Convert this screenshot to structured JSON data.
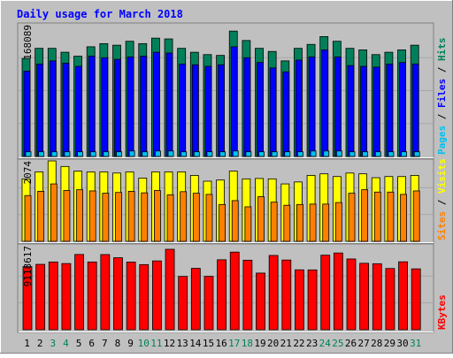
{
  "title": "Daily usage for March 2018",
  "colors": {
    "background": "#c0c0c0",
    "title": "#0000ff",
    "hits": "#00805a",
    "files": "#0000ff",
    "pages": "#00c0f0",
    "visits": "#ffff00",
    "sites": "#ff8000",
    "kbytes": "#ff0000",
    "weekend_label": "#00805a",
    "weekday_label": "#000000"
  },
  "chart_data": [
    {
      "type": "bar",
      "panel": "hits-files-pages",
      "categories": [
        "1",
        "2",
        "3",
        "4",
        "5",
        "6",
        "7",
        "8",
        "9",
        "10",
        "11",
        "12",
        "13",
        "14",
        "15",
        "16",
        "17",
        "18",
        "19",
        "20",
        "21",
        "22",
        "23",
        "24",
        "25",
        "26",
        "27",
        "28",
        "29",
        "30",
        "31"
      ],
      "ymax_label": "168089",
      "ylim": [
        0,
        168089
      ],
      "legend": [
        "Pages",
        "Files",
        "Hits"
      ],
      "series": [
        {
          "name": "Hits",
          "values": [
            125000,
            138000,
            138000,
            133000,
            128000,
            140000,
            144000,
            142000,
            147000,
            144000,
            151000,
            150000,
            138000,
            133000,
            130000,
            129000,
            160000,
            148000,
            138000,
            134000,
            122000,
            138000,
            143000,
            153000,
            147000,
            138000,
            136000,
            130000,
            133000,
            136000,
            142000
          ]
        },
        {
          "name": "Files",
          "values": [
            109000,
            118000,
            122000,
            119000,
            115000,
            128000,
            126000,
            124000,
            127000,
            128000,
            133000,
            132000,
            118000,
            117000,
            115000,
            117000,
            140000,
            126000,
            120000,
            113000,
            108000,
            123000,
            127000,
            136000,
            127000,
            116000,
            115000,
            114000,
            118000,
            120000,
            118000
          ]
        },
        {
          "name": "Pages",
          "values": [
            6000,
            6000,
            6000,
            6000,
            6000,
            6000,
            6000,
            6000,
            7000,
            6000,
            7000,
            7000,
            6000,
            6000,
            6000,
            6000,
            7000,
            6000,
            6000,
            6000,
            6000,
            6000,
            7000,
            7000,
            7000,
            6000,
            6000,
            6000,
            6000,
            6000,
            6000
          ]
        }
      ]
    },
    {
      "type": "bar",
      "panel": "visits-sites",
      "categories": [
        "1",
        "2",
        "3",
        "4",
        "5",
        "6",
        "7",
        "8",
        "9",
        "10",
        "11",
        "12",
        "13",
        "14",
        "15",
        "16",
        "17",
        "18",
        "19",
        "20",
        "21",
        "22",
        "23",
        "24",
        "25",
        "26",
        "27",
        "28",
        "29",
        "30",
        "31"
      ],
      "ymax_label": "2074",
      "ylim": [
        0,
        2074
      ],
      "legend": [
        "Sites",
        "Visits"
      ],
      "series": [
        {
          "name": "Visits",
          "values": [
            1610,
            1790,
            2074,
            1930,
            1810,
            1790,
            1790,
            1760,
            1790,
            1630,
            1790,
            1790,
            1790,
            1700,
            1550,
            1580,
            1810,
            1610,
            1620,
            1610,
            1480,
            1530,
            1700,
            1740,
            1670,
            1760,
            1740,
            1640,
            1670,
            1670,
            1700
          ]
        },
        {
          "name": "Sites",
          "values": [
            1180,
            1290,
            1480,
            1310,
            1330,
            1300,
            1240,
            1260,
            1290,
            1250,
            1310,
            1200,
            1280,
            1240,
            1210,
            950,
            1050,
            890,
            1150,
            1010,
            930,
            950,
            960,
            960,
            1000,
            1240,
            1330,
            1270,
            1270,
            1210,
            1300
          ]
        }
      ]
    },
    {
      "type": "bar",
      "panel": "kbytes",
      "categories": [
        "1",
        "2",
        "3",
        "4",
        "5",
        "6",
        "7",
        "8",
        "9",
        "10",
        "11",
        "12",
        "13",
        "14",
        "15",
        "16",
        "17",
        "18",
        "19",
        "20",
        "21",
        "22",
        "23",
        "24",
        "25",
        "26",
        "27",
        "28",
        "29",
        "30",
        "31"
      ],
      "ymax_label": "9118617",
      "ylim": [
        0,
        9118617
      ],
      "legend": [
        "KBytes"
      ],
      "series": [
        {
          "name": "KBytes",
          "values": [
            7150000,
            7410000,
            7680000,
            7500000,
            8530000,
            7680000,
            8520000,
            8160000,
            7670000,
            7380000,
            7800000,
            9118617,
            6040000,
            6960000,
            6050000,
            7930000,
            8800000,
            7880000,
            6420000,
            8420000,
            7900000,
            6790000,
            6780000,
            8450000,
            8700000,
            8020000,
            7530000,
            7480000,
            6940000,
            7700000,
            6900000
          ]
        }
      ]
    }
  ],
  "weekend_days": [
    3,
    4,
    10,
    11,
    17,
    18,
    24,
    25,
    31
  ]
}
